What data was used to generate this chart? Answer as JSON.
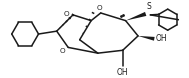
{
  "bg_color": "#ffffff",
  "line_color": "#1a1a1a",
  "line_width": 1.1,
  "figsize": [
    1.89,
    0.78
  ],
  "dpi": 100,
  "xlim": [
    0,
    189
  ],
  "ylim": [
    0,
    78
  ],
  "aspect": "equal"
}
